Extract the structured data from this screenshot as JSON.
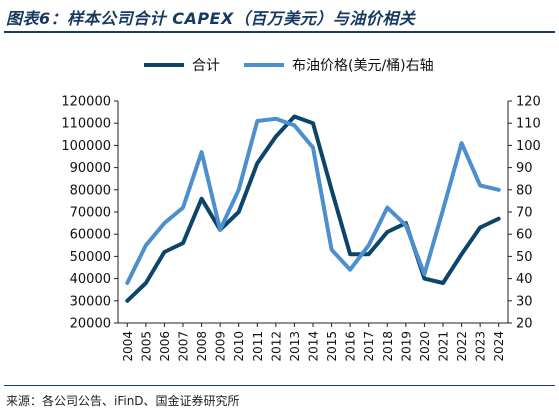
{
  "title": "图表6：样本公司合计 CAPEX（百万美元）与油价相关",
  "source": "来源：各公司公告、iFinD、国金证券研究所",
  "colors": {
    "capex": "#0b4569",
    "oil": "#4c8fcf",
    "rule": "#1b3c66"
  },
  "chart_data": {
    "type": "line",
    "title": "图表6：样本公司合计 CAPEX（百万美元）与油价相关",
    "x": [
      "2004",
      "2005",
      "2006",
      "2007",
      "2008",
      "2009",
      "2010",
      "2011",
      "2012",
      "2013",
      "2014",
      "2015",
      "2016",
      "2017",
      "2018",
      "2019",
      "2020",
      "2021",
      "2022",
      "2023",
      "2024"
    ],
    "xlabel": "",
    "ylabel": "",
    "y_left": {
      "lim": [
        20000,
        120000
      ],
      "ticks": [
        "20000",
        "30000",
        "40000",
        "50000",
        "60000",
        "70000",
        "80000",
        "90000",
        "100000",
        "110000",
        "120000"
      ]
    },
    "y_right": {
      "lim": [
        20,
        120
      ],
      "ticks": [
        "20",
        "30",
        "40",
        "50",
        "60",
        "70",
        "80",
        "90",
        "100",
        "110",
        "120"
      ]
    },
    "legend_position": "top",
    "grid": false,
    "series": [
      {
        "name": "合计",
        "axis": "left",
        "values": [
          30000,
          38000,
          52000,
          56000,
          76000,
          62000,
          70000,
          92000,
          104000,
          113000,
          110000,
          80000,
          51000,
          51000,
          61000,
          65000,
          40000,
          38000,
          51000,
          63000,
          67000
        ]
      },
      {
        "name": "布油价格(美元/桶)右轴",
        "axis": "right",
        "values": [
          38,
          55,
          65,
          72,
          97,
          62,
          80,
          111,
          112,
          109,
          99,
          53,
          44,
          55,
          72,
          64,
          42,
          71,
          101,
          82,
          80
        ]
      }
    ]
  }
}
